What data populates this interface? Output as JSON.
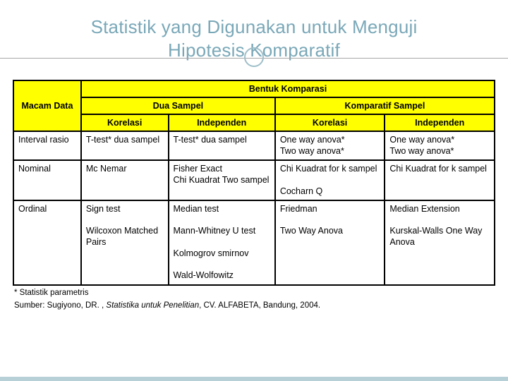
{
  "title_line1": "Statistik yang Digunakan untuk Menguji",
  "title_line2": "Hipotesis Komparatif",
  "colors": {
    "title": "#7aa8b8",
    "header_bg": "#ffff00",
    "border": "#000000",
    "accent_circle": "#9fbfc9",
    "rule": "#a8a8a8",
    "bottom_bar": "#b7d0d8"
  },
  "table": {
    "header": {
      "macam": "Macam Data",
      "bentuk": "Bentuk Komparasi",
      "dua": "Dua Sampel",
      "komp": "Komparatif Sampel",
      "korelasi": "Korelasi",
      "independen": "Independen"
    },
    "rows": [
      {
        "label": "Interval rasio",
        "a": "T-test* dua sampel",
        "b": "T-test* dua sampel",
        "c": "One way anova*\nTwo way anova*",
        "d": "One way anova*\nTwo way anova*"
      },
      {
        "label": "Nominal",
        "a": "Mc Nemar",
        "b": "Fisher Exact\nChi Kuadrat Two sampel",
        "c": "Chi Kuadrat for k sampel\n\nCocharn Q",
        "d": "Chi Kuadrat for k sampel"
      },
      {
        "label": "Ordinal",
        "a": "Sign test\n\nWilcoxon Matched Pairs",
        "b": "Median test\n\nMann-Whitney U test\n\nKolmogrov smirnov\n\nWald-Wolfowitz",
        "c": "Friedman\n\nTwo Way Anova",
        "d": "Median Extension\n\nKurskal-Walls One Way Anova"
      }
    ]
  },
  "footnote": "* Statistik parametris",
  "source_prefix": "Sumber: Sugiyono, DR. , ",
  "source_italic": "Statistika untuk Penelitian",
  "source_suffix": ", CV. ALFABETA, Bandung, 2004."
}
